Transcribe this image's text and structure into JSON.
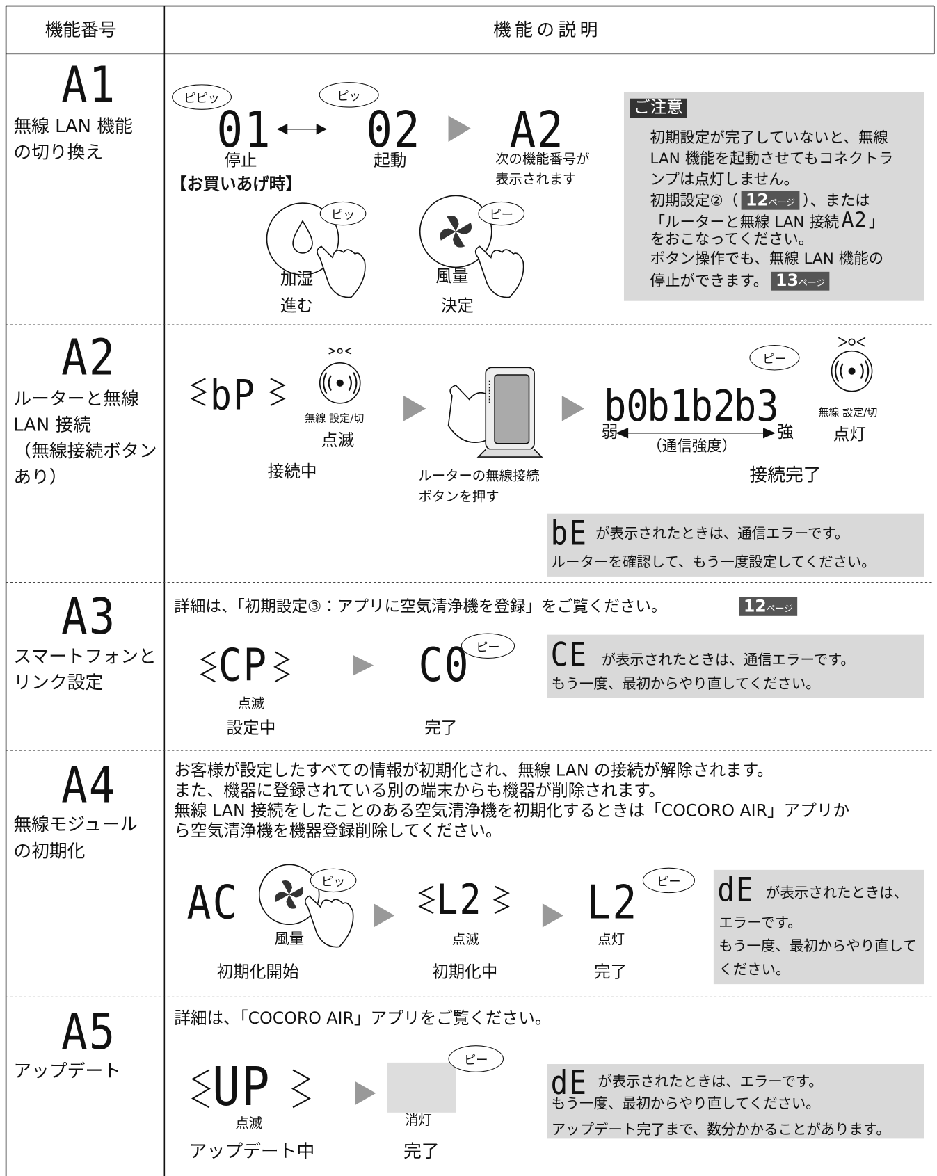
{
  "header": {
    "number_heading": "機能番号",
    "description_heading": "機能の説明"
  },
  "rows": [
    {
      "code": "A1",
      "name_lines": [
        "無線 LAN 機能",
        "の切り換え"
      ],
      "sequence": {
        "off_beep": "ピピッ",
        "off_display": "01",
        "off_label": "停止",
        "default_note": "【お買いあげ時】",
        "on_beep": "ピッ",
        "on_display": "02",
        "on_label": "起動",
        "next_display": "A2",
        "next_note_lines": [
          "次の機能番号が",
          "表示されます"
        ]
      },
      "buttons": [
        {
          "beep": "ピッ",
          "name": "加湿",
          "action": "進む"
        },
        {
          "beep": "ピー",
          "name": "風量",
          "action": "決定"
        }
      ],
      "caution": {
        "title": "ご注意",
        "bullet1_lines": [
          "初期設定が完了していないと、無線",
          "LAN 機能を起動させてもコネクトラ",
          "ンプは点灯しません。"
        ],
        "ref_before": "初期設定②（",
        "ref": {
          "page": "12",
          "unit": "ページ"
        },
        "ref_after": "）、または",
        "link_before": "「ルーターと無線 LAN 接続",
        "link_display": "A2",
        "link_after": "」",
        "bullet1_end": "をおこなってください。",
        "bullet2_lines": [
          "ボタン操作でも、無線 LAN 機能の",
          "停止ができます。"
        ],
        "bullet2_ref": {
          "page": "13",
          "unit": "ページ"
        }
      }
    },
    {
      "code": "A2",
      "name_lines": [
        "ルーターと無線",
        "LAN 接続",
        "（無線接続ボタン",
        "あり）"
      ],
      "connecting": {
        "display": "bP",
        "button_label": "無線 設定/切",
        "lamp_state": "点滅",
        "status": "接続中"
      },
      "router_caption_lines": [
        "ルーターの無線接続",
        "ボタンを押す"
      ],
      "connected": {
        "beep": "ピー",
        "displays": [
          "b0",
          "b1",
          "b2",
          "b3"
        ],
        "weak": "弱",
        "strength": "（通信強度）",
        "strong": "強",
        "button_label": "無線 設定/切",
        "lamp_state": "点灯",
        "status": "接続完了"
      },
      "error": {
        "display": "bE",
        "lines": [
          "が表示されたときは、通信エラーです。",
          "ルーターを確認して、もう一度設定してください。"
        ]
      }
    },
    {
      "code": "A3",
      "name_lines": [
        "スマートフォンと",
        "リンク設定"
      ],
      "detail": "詳細は、「初期設定③：アプリに空気清浄機を登録」をご覧ください。",
      "ref": {
        "page": "12",
        "unit": "ページ"
      },
      "setting": {
        "display": "CP",
        "lamp_state": "点滅",
        "status": "設定中"
      },
      "done": {
        "display": "C0",
        "beep": "ピー",
        "status": "完了"
      },
      "error": {
        "display": "CE",
        "lines": [
          "が表示されたときは、通信エラーです。",
          "もう一度、最初からやり直してください。"
        ]
      }
    },
    {
      "code": "A4",
      "name_lines": [
        "無線モジュール",
        "の初期化"
      ],
      "detail_lines": [
        "お客様が設定したすべての情報が初期化され、無線 LAN の接続が解除されます。",
        "また、機器に登録されている別の端末からも機器が削除されます。",
        "無線 LAN 接続をしたことのある空気清浄機を初期化するときは「COCORO AIR」アプリか",
        "ら空気清浄機を機器登録削除してください。"
      ],
      "start": {
        "display": "AC",
        "button": "風量",
        "beep": "ピッ",
        "status": "初期化開始"
      },
      "progress": {
        "display": "L2",
        "lamp_state": "点滅",
        "status": "初期化中"
      },
      "done": {
        "display": "L2",
        "beep": "ピー",
        "lamp_state": "点灯",
        "status": "完了"
      },
      "error": {
        "display": "dE",
        "lines": [
          "が表示されたときは、",
          "エラーです。",
          "もう一度、最初からやり直して",
          "ください。"
        ]
      }
    },
    {
      "code": "A5",
      "name_lines": [
        "アップデート"
      ],
      "detail": "詳細は、「COCORO AIR」アプリをご覧ください。",
      "progress": {
        "display": "UP",
        "lamp_state": "点滅",
        "status": "アップデート中"
      },
      "done": {
        "beep": "ピー",
        "lamp_state": "消灯",
        "status": "完了"
      },
      "error": {
        "display": "dE",
        "lines": [
          "が表示されたときは、エラーです。",
          "もう一度、最初からやり直してください。",
          "アップデート完了まで、数分かかることがあります。"
        ]
      }
    }
  ]
}
